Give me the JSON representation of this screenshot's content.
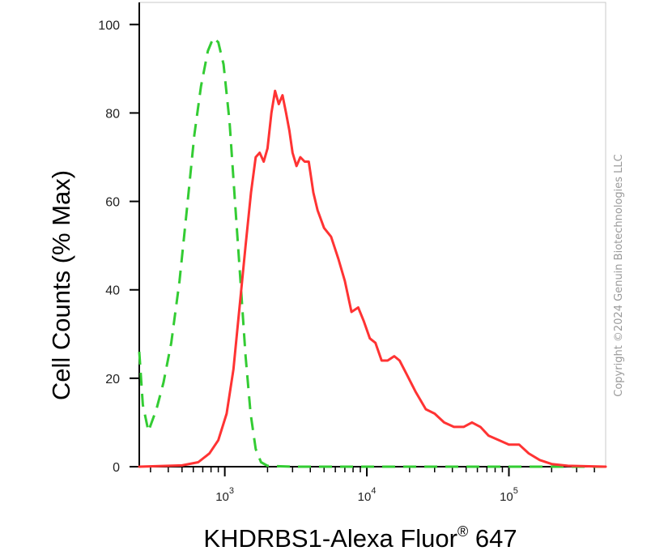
{
  "chart_data": {
    "type": "line",
    "x_scale": "log",
    "xlabel": "KHDRBS1-Alexa Fluor",
    "xlabel_superscript": "®",
    "xlabel_suffix": " 647",
    "ylabel": "Cell Counts (% Max)",
    "xlim": [
      250,
      480000
    ],
    "ylim": [
      0,
      105
    ],
    "y_ticks": [
      0,
      20,
      40,
      60,
      80,
      100
    ],
    "y_tick_labels": [
      "0",
      "20",
      "40",
      "60",
      "80",
      "100"
    ],
    "x_ticks": [
      1000,
      10000,
      100000
    ],
    "x_tick_labels": [
      {
        "base": "10",
        "exp": "3"
      },
      {
        "base": "10",
        "exp": "4"
      },
      {
        "base": "10",
        "exp": "5"
      }
    ],
    "grid": false,
    "series": [
      {
        "color": "#33cc33",
        "line_style": "dashed",
        "points": [
          [
            250,
            26
          ],
          [
            265,
            14
          ],
          [
            290,
            8
          ],
          [
            330,
            13
          ],
          [
            370,
            19
          ],
          [
            420,
            28
          ],
          [
            480,
            42
          ],
          [
            540,
            58
          ],
          [
            610,
            75
          ],
          [
            680,
            86
          ],
          [
            760,
            94
          ],
          [
            830,
            97
          ],
          [
            900,
            96
          ],
          [
            980,
            91
          ],
          [
            1080,
            78
          ],
          [
            1180,
            60
          ],
          [
            1290,
            42
          ],
          [
            1400,
            25
          ],
          [
            1520,
            12
          ],
          [
            1650,
            4
          ],
          [
            1800,
            1
          ],
          [
            2000,
            0.2
          ],
          [
            3000,
            0
          ],
          [
            10000,
            0
          ],
          [
            100000,
            0
          ],
          [
            480000,
            0
          ]
        ]
      },
      {
        "color": "#ff3333",
        "line_style": "solid",
        "points": [
          [
            250,
            0
          ],
          [
            500,
            0.3
          ],
          [
            650,
            1
          ],
          [
            780,
            3
          ],
          [
            900,
            6
          ],
          [
            1030,
            12
          ],
          [
            1150,
            22
          ],
          [
            1270,
            36
          ],
          [
            1400,
            50
          ],
          [
            1530,
            62
          ],
          [
            1650,
            70
          ],
          [
            1760,
            71
          ],
          [
            1880,
            69
          ],
          [
            2000,
            72
          ],
          [
            2130,
            80
          ],
          [
            2260,
            85
          ],
          [
            2400,
            82
          ],
          [
            2550,
            84
          ],
          [
            2700,
            80
          ],
          [
            2850,
            76
          ],
          [
            3000,
            71
          ],
          [
            3200,
            68
          ],
          [
            3400,
            70
          ],
          [
            3650,
            69
          ],
          [
            3900,
            69
          ],
          [
            4200,
            62
          ],
          [
            4500,
            58
          ],
          [
            5000,
            54
          ],
          [
            5600,
            52
          ],
          [
            6300,
            47
          ],
          [
            7000,
            42
          ],
          [
            7800,
            35
          ],
          [
            8700,
            36
          ],
          [
            9500,
            33
          ],
          [
            10500,
            29
          ],
          [
            11500,
            28
          ],
          [
            12700,
            24
          ],
          [
            14000,
            24
          ],
          [
            15600,
            25
          ],
          [
            17000,
            24
          ],
          [
            19000,
            21
          ],
          [
            22000,
            17
          ],
          [
            26000,
            13
          ],
          [
            30000,
            12
          ],
          [
            35000,
            10
          ],
          [
            41000,
            9
          ],
          [
            48000,
            9
          ],
          [
            55000,
            10
          ],
          [
            63000,
            9
          ],
          [
            72000,
            7
          ],
          [
            85000,
            6
          ],
          [
            100000,
            5
          ],
          [
            118000,
            5
          ],
          [
            138000,
            3
          ],
          [
            165000,
            1.5
          ],
          [
            200000,
            0.6
          ],
          [
            260000,
            0.2
          ],
          [
            480000,
            0
          ]
        ]
      }
    ]
  },
  "copyright": "Copyright ©2024 Genuin Biotechnologies LLC"
}
